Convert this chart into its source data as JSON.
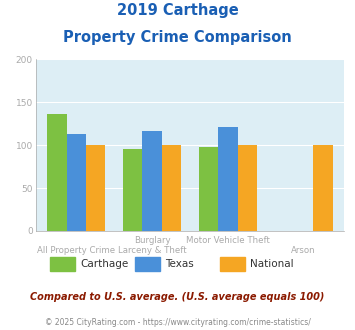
{
  "title_line1": "2019 Carthage",
  "title_line2": "Property Crime Comparison",
  "series": {
    "Carthage": [
      136,
      95,
      98,
      null
    ],
    "Texas": [
      113,
      116,
      121,
      null
    ],
    "National": [
      100,
      100,
      100,
      100
    ]
  },
  "colors": {
    "Carthage": "#7dc142",
    "Texas": "#4a90d9",
    "National": "#f5a623"
  },
  "top_labels": [
    "",
    "Burglary",
    "Motor Vehicle Theft",
    ""
  ],
  "bottom_labels": [
    "All Property Crime",
    "Larceny & Theft",
    "",
    "Arson"
  ],
  "ylim": [
    0,
    200
  ],
  "yticks": [
    0,
    50,
    100,
    150,
    200
  ],
  "plot_bg_color": "#ddeef5",
  "title_color": "#1a5fb4",
  "subtitle_note": "Compared to U.S. average. (U.S. average equals 100)",
  "footer": "© 2025 CityRating.com - https://www.cityrating.com/crime-statistics/",
  "subtitle_color": "#8b1a00",
  "footer_color": "#888888",
  "grid_color": "#ffffff",
  "tick_label_color": "#aaaaaa"
}
